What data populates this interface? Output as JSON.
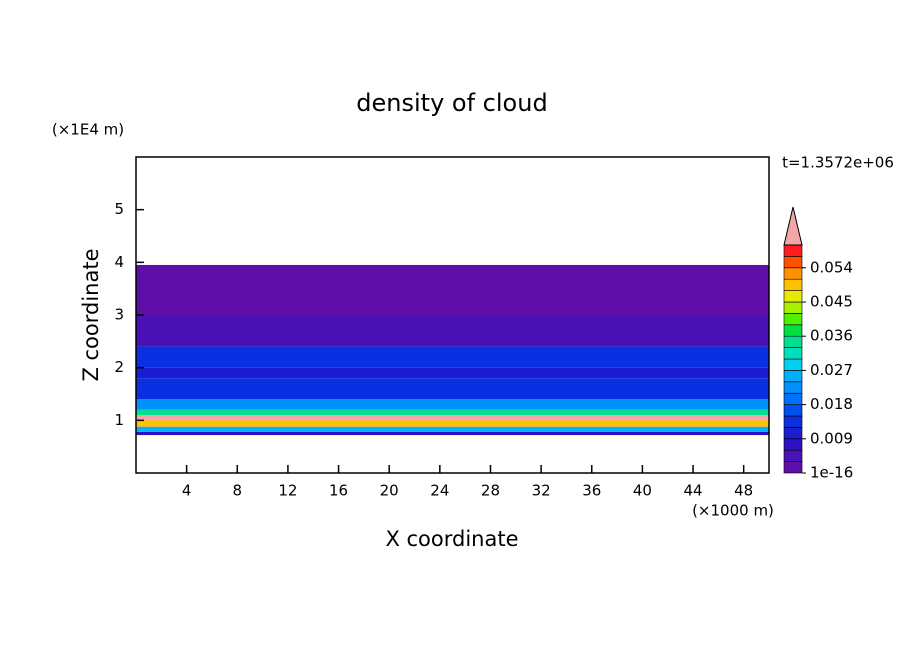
{
  "chart_data": {
    "type": "contour",
    "title": "density of cloud",
    "xlabel": "X coordinate",
    "ylabel": "Z coordinate",
    "x_unit": "(×1000 m)",
    "y_unit": "(×1E4 m)",
    "time_label": "t=1.3572e+06",
    "xlim": [
      0,
      50
    ],
    "xticks": [
      4,
      8,
      12,
      16,
      20,
      24,
      28,
      32,
      36,
      40,
      44,
      48
    ],
    "ylim": [
      0,
      6
    ],
    "yticks": [
      1,
      2,
      3,
      4,
      5
    ],
    "field": {
      "z_edges": [
        0.72,
        0.78,
        0.88,
        1.0,
        1.1,
        1.2,
        1.4,
        1.8,
        2.0,
        2.4,
        3.0,
        3.95
      ],
      "values": [
        0.007,
        0.025,
        0.05,
        0.062,
        0.035,
        0.022,
        0.015,
        0.01,
        0.013,
        0.006,
        0.002
      ]
    },
    "colorbar": {
      "levels": [
        1e-16,
        0.003,
        0.006,
        0.009,
        0.012,
        0.015,
        0.018,
        0.021,
        0.024,
        0.027,
        0.03,
        0.033,
        0.036,
        0.039,
        0.042,
        0.045,
        0.048,
        0.051,
        0.054,
        0.057,
        0.06
      ],
      "colors": [
        "#5f0fa8",
        "#4a12b4",
        "#3010c4",
        "#1c1cd2",
        "#0a30e2",
        "#0050f0",
        "#0070ff",
        "#0090ff",
        "#00b0ff",
        "#00d0f0",
        "#00e0c0",
        "#00e090",
        "#00e040",
        "#50f000",
        "#a8f000",
        "#e8e800",
        "#ffc000",
        "#ff9000",
        "#ff5000",
        "#ff1e1e"
      ],
      "extend_color": "#f2a6a6",
      "ticks": [
        1e-16,
        0.009,
        0.018,
        0.027,
        0.036,
        0.045,
        0.054
      ]
    }
  }
}
